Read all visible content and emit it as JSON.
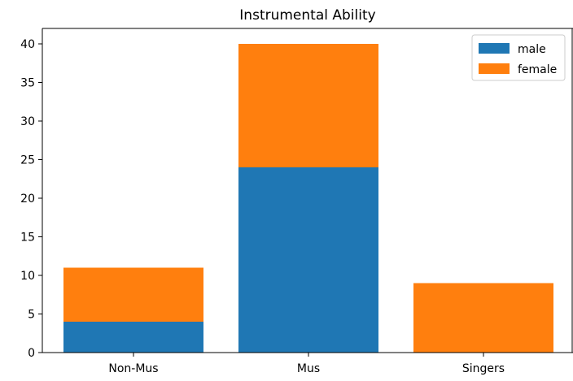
{
  "chart_data": {
    "type": "bar",
    "stacked": true,
    "title": "Instrumental Ability",
    "xlabel": "",
    "ylabel": "",
    "categories": [
      "Non-Mus",
      "Mus",
      "Singers"
    ],
    "series": [
      {
        "name": "male",
        "values": [
          4,
          24,
          0
        ],
        "color": "#1f77b4"
      },
      {
        "name": "female",
        "values": [
          7,
          16,
          9
        ],
        "color": "#ff7f0e"
      }
    ],
    "ylim": [
      0,
      42
    ],
    "yticks": [
      0,
      5,
      10,
      15,
      20,
      25,
      30,
      35,
      40
    ],
    "grid": false,
    "legend_position": "top-right"
  }
}
